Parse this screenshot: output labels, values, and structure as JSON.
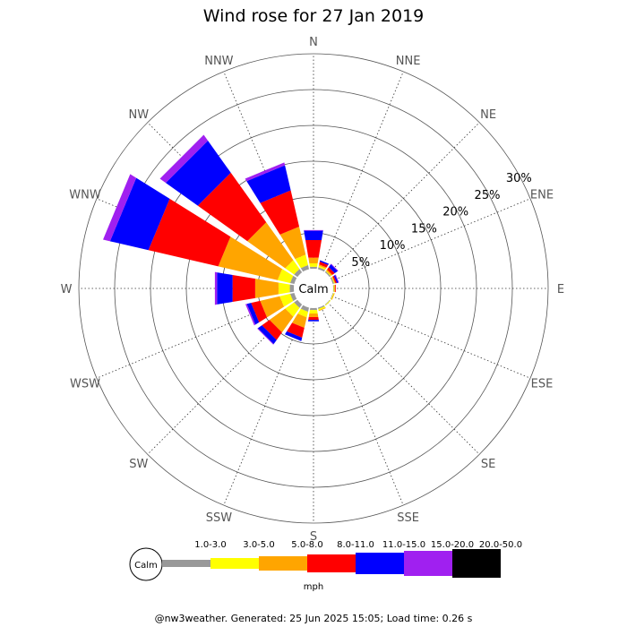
{
  "chart_data": {
    "type": "wind-rose",
    "title": "Wind rose for 27 Jan 2019",
    "directions": [
      "N",
      "NNE",
      "NE",
      "ENE",
      "E",
      "ESE",
      "SE",
      "SSE",
      "S",
      "SSW",
      "SW",
      "WSW",
      "W",
      "WNW",
      "NW",
      "NNW"
    ],
    "calm_label": "Calm",
    "radial_max_percent": 30,
    "radial_ticks": [
      {
        "value": 5,
        "label": "5%"
      },
      {
        "value": 10,
        "label": "10%"
      },
      {
        "value": 15,
        "label": "15%"
      },
      {
        "value": 20,
        "label": "20%"
      },
      {
        "value": 25,
        "label": "25%"
      },
      {
        "value": 30,
        "label": "30%"
      }
    ],
    "speed_unit": "mph",
    "bins": [
      {
        "label": "1.0-3.0",
        "color": "#999999"
      },
      {
        "label": "3.0-5.0",
        "color": "#ffff00"
      },
      {
        "label": "5.0-8.0",
        "color": "#ffa500"
      },
      {
        "label": "8.0-11.0",
        "color": "#ff0000"
      },
      {
        "label": "11.0-15.0",
        "color": "#0000ff"
      },
      {
        "label": "15.0-20.0",
        "color": "#a020f0"
      },
      {
        "label": "20.0-50.0",
        "color": "#000000"
      }
    ],
    "series": [
      {
        "direction": "N",
        "values": [
          0.3,
          0.5,
          0.8,
          2.5,
          1.3,
          0.1,
          0
        ]
      },
      {
        "direction": "NNE",
        "values": [
          0.3,
          0.2,
          0.2,
          0.4,
          0.2,
          0,
          0
        ]
      },
      {
        "direction": "NE",
        "values": [
          0.2,
          0.1,
          0.2,
          0.4,
          0.5,
          0.1,
          0
        ]
      },
      {
        "direction": "ENE",
        "values": [
          0.2,
          0.1,
          0.1,
          0.2,
          0.2,
          0.1,
          0
        ]
      },
      {
        "direction": "E",
        "values": [
          0.1,
          0.1,
          0.1,
          0.1,
          0,
          0,
          0
        ]
      },
      {
        "direction": "ESE",
        "values": [
          0.1,
          0.1,
          0.1,
          0,
          0,
          0,
          0
        ]
      },
      {
        "direction": "SE",
        "values": [
          0.1,
          0.1,
          0,
          0,
          0,
          0,
          0
        ]
      },
      {
        "direction": "SSE",
        "values": [
          0.2,
          0.2,
          0.1,
          0,
          0,
          0,
          0
        ]
      },
      {
        "direction": "S",
        "values": [
          0.3,
          0.5,
          0.5,
          0.4,
          0.2,
          0,
          0
        ]
      },
      {
        "direction": "SSW",
        "values": [
          0.6,
          0.8,
          1.5,
          1.4,
          0.5,
          0,
          0
        ]
      },
      {
        "direction": "SW",
        "values": [
          0.6,
          1.5,
          2.7,
          1.3,
          0.7,
          0.1,
          0
        ]
      },
      {
        "direction": "WSW",
        "values": [
          0.6,
          1.5,
          2.8,
          1.3,
          0.6,
          0.2,
          0
        ]
      },
      {
        "direction": "W",
        "values": [
          0.6,
          1.6,
          3.3,
          3.2,
          2.2,
          0.3,
          0
        ]
      },
      {
        "direction": "WNW",
        "values": [
          0.6,
          1.8,
          8.5,
          10.0,
          5.5,
          1.0,
          0
        ]
      },
      {
        "direction": "NW",
        "values": [
          0.6,
          1.5,
          6.5,
          8.5,
          5.5,
          1.0,
          0
        ]
      },
      {
        "direction": "NNW",
        "values": [
          0.6,
          1.5,
          4.0,
          5.2,
          3.6,
          0.4,
          0
        ]
      }
    ]
  },
  "footer": {
    "text": "@nw3weather. Generated: 25 Jun 2025 15:05; Load time: 0.26 s"
  }
}
